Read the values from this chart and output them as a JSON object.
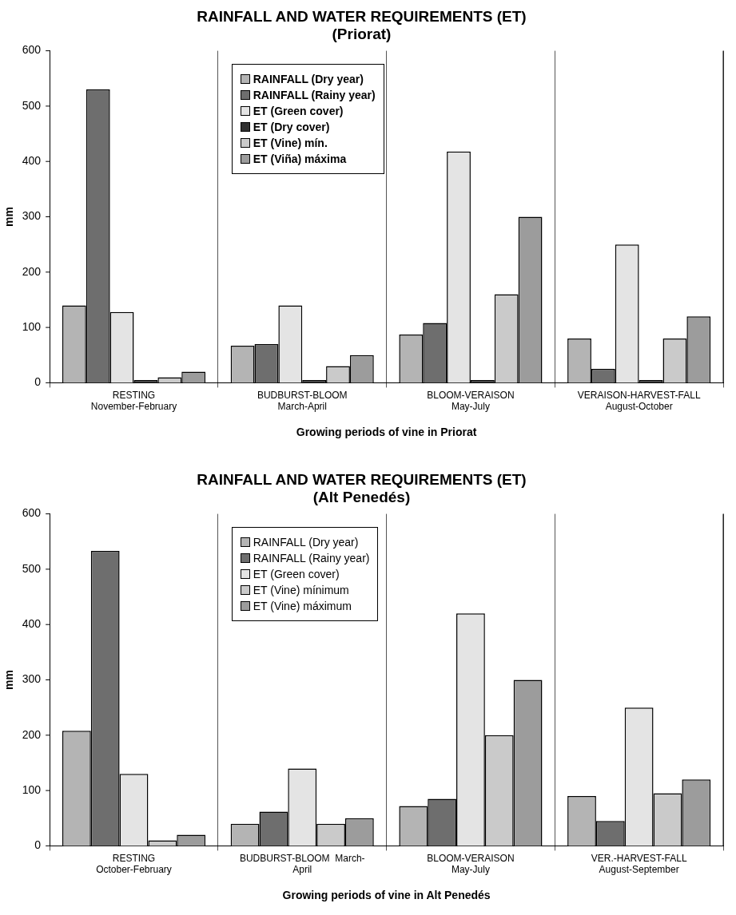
{
  "chart_data": [
    {
      "type": "bar",
      "title": "RAINFALL AND WATER REQUIREMENTS (ET)",
      "subtitle": "(Priorat)",
      "xlabel": "Growing periods of vine in Priorat",
      "ylabel": "mm",
      "categories": [
        "RESTING\nNovember-February",
        "BUDBURST-BLOOM\nMarch-April",
        "BLOOM-VERAISON\nMay-July",
        "VERAISON-HARVEST-FALL\nAugust-October"
      ],
      "series": [
        {
          "name": "RAINFALL (Dry year)",
          "color": "#b4b4b4",
          "values": [
            140,
            67,
            87,
            80
          ]
        },
        {
          "name": "RAINFALL (Rainy year)",
          "color": "#6e6e6e",
          "values": [
            530,
            70,
            108,
            25
          ]
        },
        {
          "name": "ET (Green cover)",
          "color": "#e4e4e4",
          "values": [
            128,
            140,
            418,
            250
          ]
        },
        {
          "name": "ET (Dry cover)",
          "color": "#303030",
          "values": [
            5,
            5,
            5,
            5
          ]
        },
        {
          "name": "ET (Vine) mín.",
          "color": "#cacaca",
          "values": [
            10,
            30,
            160,
            80
          ]
        },
        {
          "name": "ET (Viña) máxima",
          "color": "#9c9c9c",
          "values": [
            20,
            50,
            300,
            120
          ]
        }
      ],
      "ylim": [
        0,
        600
      ],
      "yticks": [
        0,
        100,
        200,
        300,
        400,
        500,
        600
      ],
      "grid": "x",
      "legend": "top"
    },
    {
      "type": "bar",
      "title": "RAINFALL AND WATER REQUIREMENTS (ET)",
      "subtitle": "(Alt Penedés)",
      "xlabel": "Growing periods of vine in Alt Penedés",
      "ylabel": "mm",
      "categories": [
        "RESTING\nOctober-February",
        "BUDBURST-BLOOM  March-\nApril",
        "BLOOM-VERAISON\nMay-July",
        "VER.-HARVEST-FALL\nAugust-September"
      ],
      "series": [
        {
          "name": "RAINFALL (Dry year)",
          "color": "#b4b4b4",
          "values": [
            208,
            40,
            72,
            90
          ]
        },
        {
          "name": "RAINFALL (Rainy year)",
          "color": "#6e6e6e",
          "values": [
            533,
            62,
            85,
            45
          ]
        },
        {
          "name": "ET (Green cover)",
          "color": "#e4e4e4",
          "values": [
            130,
            140,
            420,
            250
          ]
        },
        {
          "name": "ET (Vine) mínimum",
          "color": "#cacaca",
          "values": [
            10,
            40,
            200,
            95
          ]
        },
        {
          "name": "ET (Vine) máximum",
          "color": "#9c9c9c",
          "values": [
            20,
            50,
            300,
            120
          ]
        }
      ],
      "ylim": [
        0,
        600
      ],
      "yticks": [
        0,
        100,
        200,
        300,
        400,
        500,
        600
      ],
      "grid": "x",
      "legend": "top"
    }
  ]
}
